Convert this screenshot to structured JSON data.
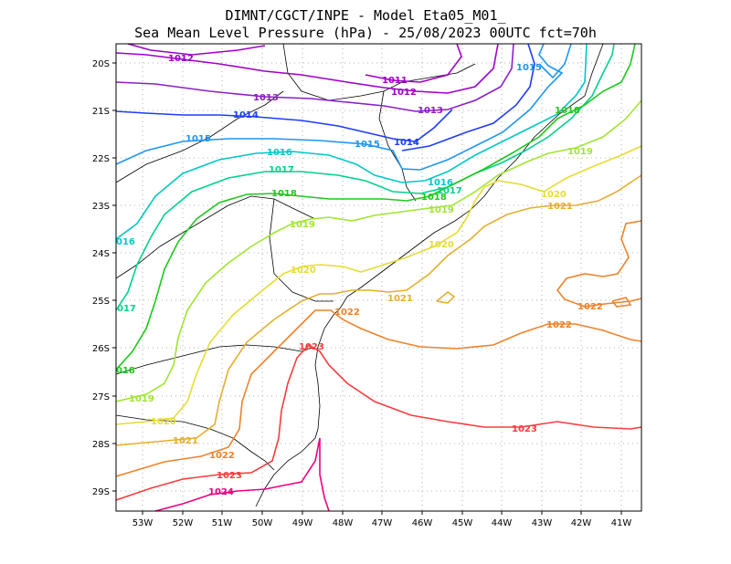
{
  "title": {
    "line1": "DIMNT/CGCT/INPE -  Model Eta05_M01_",
    "line2": "Sea Mean Level Pressure (hPa) - 25/08/2023 00UTC fct=70h"
  },
  "axes": {
    "lon_labels": [
      "53W",
      "52W",
      "51W",
      "50W",
      "49W",
      "48W",
      "47W",
      "46W",
      "45W",
      "44W",
      "43W",
      "42W",
      "41W"
    ],
    "lat_labels": [
      "20S",
      "21S",
      "22S",
      "23S",
      "24S",
      "25S",
      "26S",
      "27S",
      "28S",
      "29S"
    ]
  },
  "colors": {
    "c1011": "#a000c8",
    "c1012": "#a000c8",
    "c1013": "#8c1ec8",
    "c1014": "#1e3cff",
    "c1015": "#1e96f0",
    "c1016": "#00c8c8",
    "c1017": "#00d28c",
    "c1018": "#1ec81e",
    "c1019": "#a0e632",
    "c1020": "#e6dc32",
    "c1021": "#e6af2d",
    "c1022": "#f08228",
    "c1023": "#fa3c3c",
    "c1024": "#f00082",
    "coast": "#000000",
    "grid": "#888888"
  },
  "labels": {
    "l1011": "1011",
    "l1012a": "1012",
    "l1012b": "1012",
    "l1013a": "1013",
    "l1013b": "1013",
    "l1014a": "1014",
    "l1014b": "1014",
    "l1015a": "1015",
    "l1015b": "1015",
    "l1015c": "1015",
    "l1016a": "1016",
    "l1016b": "016",
    "l1016c": "1016",
    "l1017a": "1017",
    "l1017b": "017",
    "l1017c": "1017",
    "l1018a": "1018",
    "l1018b": "1018",
    "l1018c": "018",
    "l1018d": "1018",
    "l1019a": "1019",
    "l1019b": "1019",
    "l1019c": "1019",
    "l1019d": "1019",
    "l1020a": "1020",
    "l1020b": "1020",
    "l1020c": "1020",
    "l1020d": "1020",
    "l1021a": "1021",
    "l1021b": "1021",
    "l1021c": "1021",
    "l1022a": "1022",
    "l1022b": "1022",
    "l1022c": "1022",
    "l1022d": "1022",
    "l1023a": "1023",
    "l1023b": "1023",
    "l1023c": "1023",
    "l1024": "1024"
  }
}
